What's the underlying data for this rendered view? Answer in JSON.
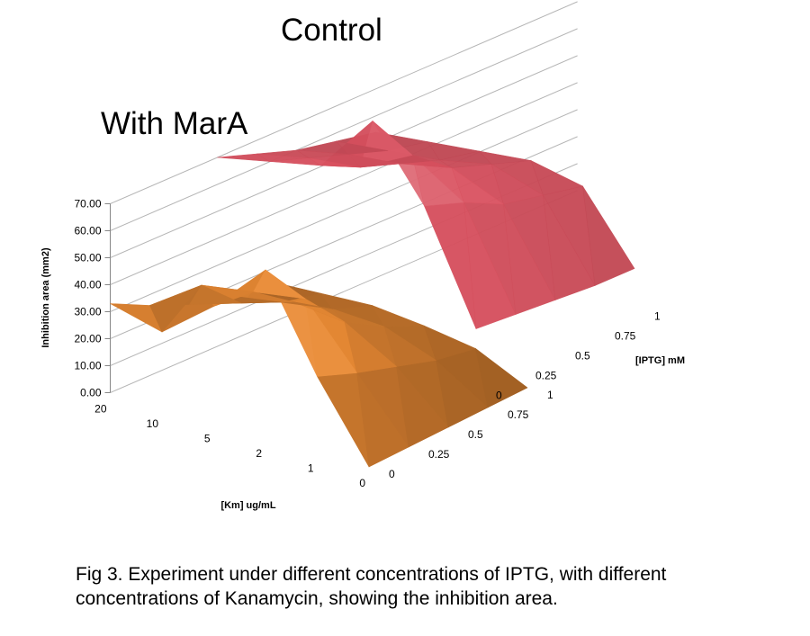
{
  "caption": "Fig 3. Experiment under different concentrations of IPTG, with different concentrations of Kanamycin, showing the inhibition area.",
  "chart_data": {
    "type": "surface",
    "ylabel": "Inhibition area (mm2)",
    "xlabel": "[Km] ug/mL",
    "zlabel": "[IPTG] mM",
    "km_categories": [
      "20",
      "10",
      "5",
      "2",
      "1",
      "0"
    ],
    "iptg_categories": [
      "0",
      "0.25",
      "0.5",
      "0.75",
      "1"
    ],
    "value_ticks": [
      "0.00",
      "10.00",
      "20.00",
      "30.00",
      "40.00",
      "50.00",
      "60.00",
      "70.00"
    ],
    "ylim": [
      0,
      70
    ],
    "colors": {
      "with_mara": "#e98a34",
      "control": "#d9515f",
      "grid": "#b5b5b5"
    },
    "series": [
      {
        "name": "With MarA",
        "values": [
          [
            33,
            25,
            18,
            14,
            12
          ],
          [
            28,
            38,
            24,
            17,
            13
          ],
          [
            43,
            41,
            30,
            20,
            14
          ],
          [
            62,
            44,
            28,
            19,
            12
          ],
          [
            28,
            22,
            17,
            12,
            9
          ],
          [
            0,
            0,
            0,
            0,
            0
          ]
        ]
      },
      {
        "name": "Control",
        "values": [
          [
            58,
            52,
            46,
            42,
            38
          ],
          [
            62,
            56,
            50,
            44,
            40
          ],
          [
            66,
            58,
            52,
            46,
            42
          ],
          [
            88,
            68,
            56,
            50,
            44
          ],
          [
            62,
            56,
            48,
            44,
            40
          ],
          [
            22,
            20,
            18,
            16,
            15
          ]
        ]
      }
    ]
  }
}
